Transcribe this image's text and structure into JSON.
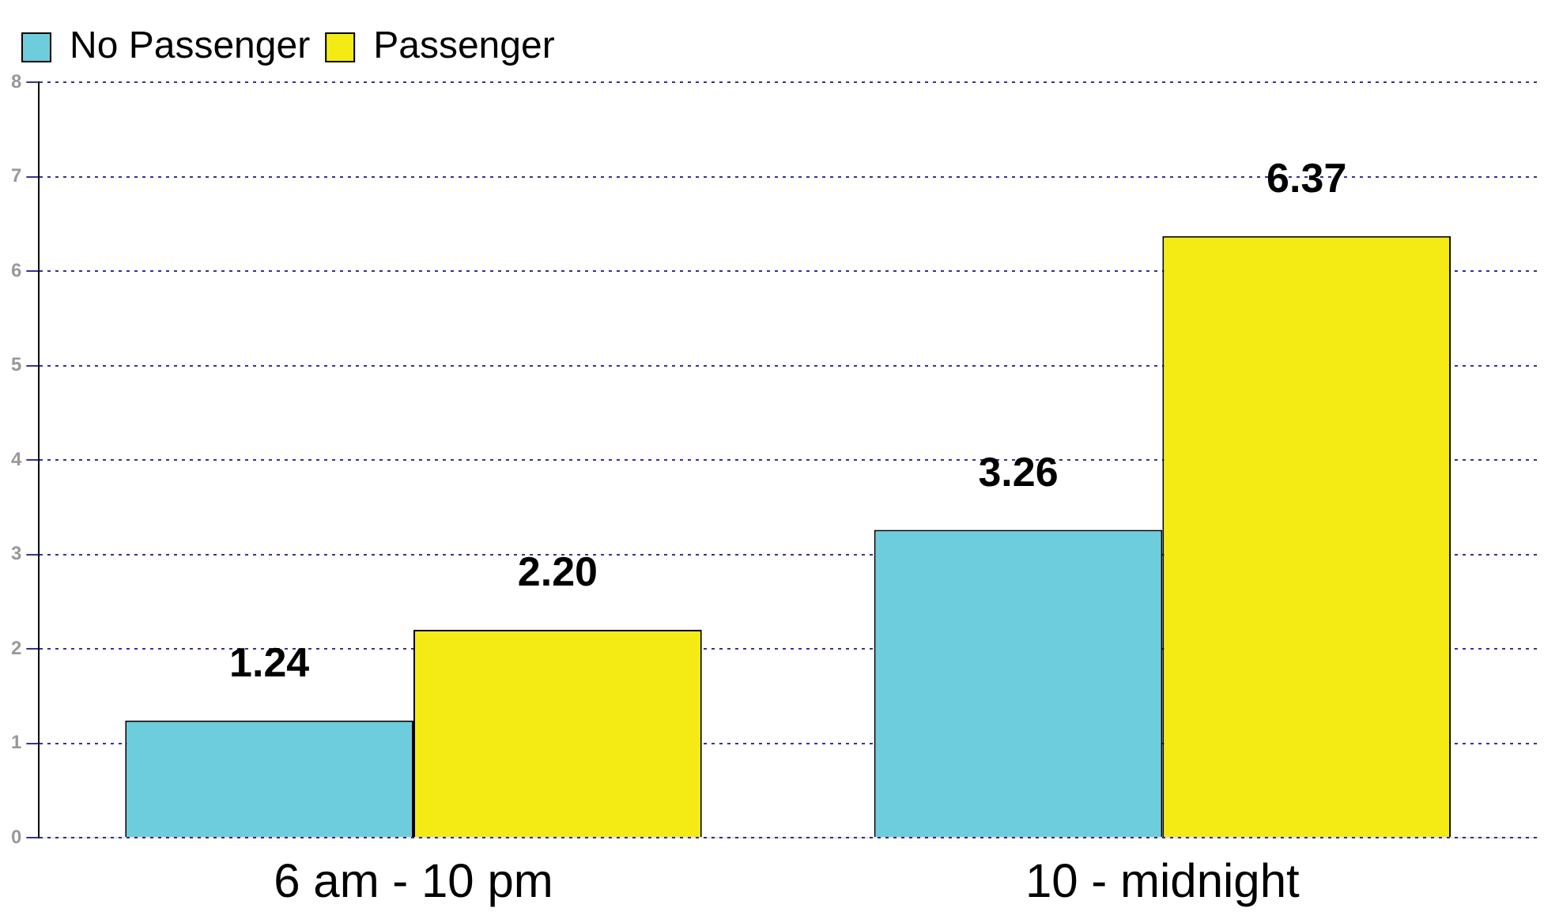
{
  "chart_data": {
    "type": "bar",
    "categories": [
      "6 am - 10 pm",
      "10 - midnight"
    ],
    "series": [
      {
        "name": "No Passenger",
        "color": "#6dcddd",
        "values": [
          1.24,
          3.26
        ],
        "value_labels": [
          "1.24",
          "3.26"
        ]
      },
      {
        "name": "Passenger",
        "color": "#f5eb14",
        "values": [
          2.2,
          6.37
        ],
        "value_labels": [
          "2.20",
          "6.37"
        ]
      }
    ],
    "ylim": [
      0,
      8
    ],
    "yticks": [
      0,
      1,
      2,
      3,
      4,
      5,
      6,
      7,
      8
    ],
    "grid": "y",
    "line_style": "dotted",
    "legend": "top left"
  }
}
